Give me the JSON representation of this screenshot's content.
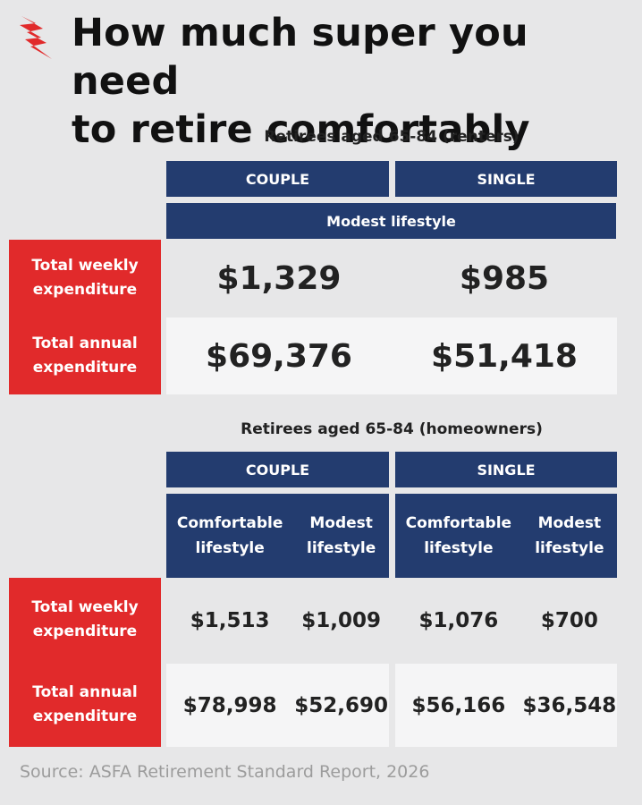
{
  "logo": {
    "icon": "sbs-logo-icon",
    "color": "#e12a2b"
  },
  "title": {
    "line1": "How much super you need",
    "line2": "to retire comfortably"
  },
  "renters": {
    "subtitle": "Retirees aged 65-84 (renters)",
    "col_couple": "COUPLE",
    "col_single": "SINGLE",
    "lifestyle": "Modest lifestyle",
    "weekly_label": {
      "line1": "Total weekly",
      "line2": "expenditure"
    },
    "annual_label": {
      "line1": "Total annual",
      "line2": "expenditure"
    },
    "weekly": {
      "couple": "$1,329",
      "single": "$985"
    },
    "annual": {
      "couple": "$69,376",
      "single": "$51,418"
    }
  },
  "homeowners": {
    "subtitle": "Retirees aged 65-84 (homeowners)",
    "col_couple": "COUPLE",
    "col_single": "SINGLE",
    "sub_headers": {
      "couple_comfortable": {
        "line1": "Comfortable",
        "line2": "lifestyle"
      },
      "couple_modest": {
        "line1": "Modest",
        "line2": "lifestyle"
      },
      "single_comfortable": {
        "line1": "Comfortable",
        "line2": "lifestyle"
      },
      "single_modest": {
        "line1": "Modest",
        "line2": "lifestyle"
      }
    },
    "weekly_label": {
      "line1": "Total weekly",
      "line2": "expenditure"
    },
    "annual_label": {
      "line1": "Total annual",
      "line2": "expenditure"
    },
    "weekly": {
      "couple_comfortable": "$1,513",
      "couple_modest": "$1,009",
      "single_comfortable": "$1,076",
      "single_modest": "$700"
    },
    "annual": {
      "couple_comfortable": "$78,998",
      "couple_modest": "$52,690",
      "single_comfortable": "$56,166",
      "single_modest": "$36,548"
    }
  },
  "source": "Source: ASFA Retirement Standard Report, 2026",
  "colors": {
    "navy": "#233c6f",
    "red": "#e12a2b",
    "background": "#e7e7e8",
    "light_cell": "#f5f5f6"
  }
}
